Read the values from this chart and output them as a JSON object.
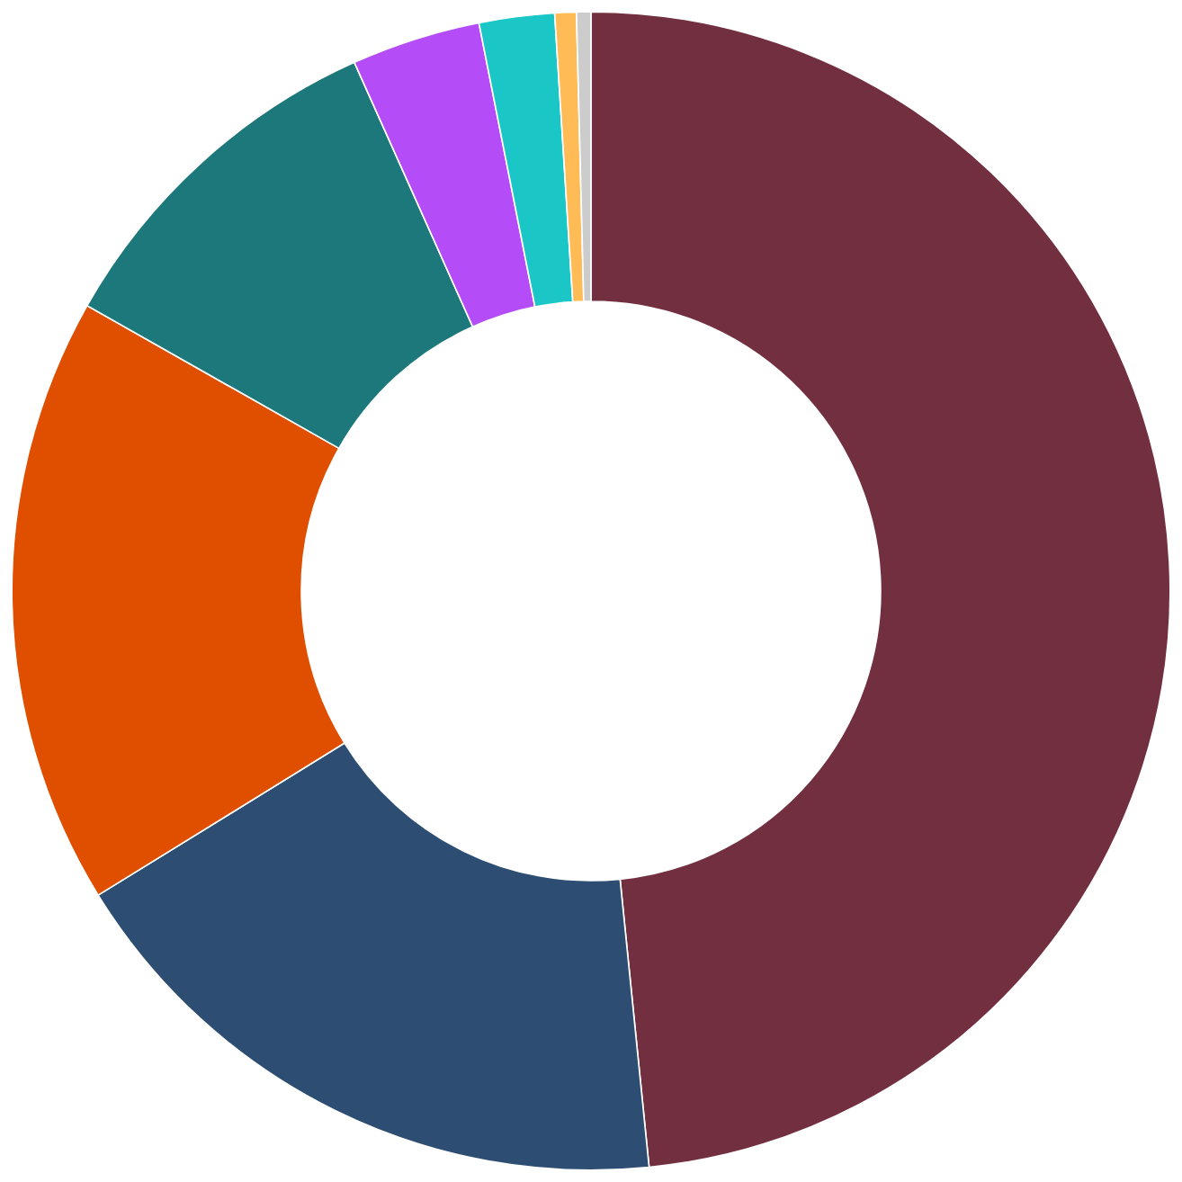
{
  "chart_data": {
    "type": "donut",
    "categories": [
      null,
      null,
      null,
      null,
      null,
      null,
      null,
      null
    ],
    "values": [
      48.4,
      17.8,
      17.0,
      10.1,
      3.6,
      2.1,
      0.6,
      0.4
    ],
    "colors": [
      "#722f3f",
      "#2d4e72",
      "#e04e00",
      "#1c787a",
      "#b44cf8",
      "#1ac6c6",
      "#ffbb55",
      "#cccccc"
    ]
  }
}
